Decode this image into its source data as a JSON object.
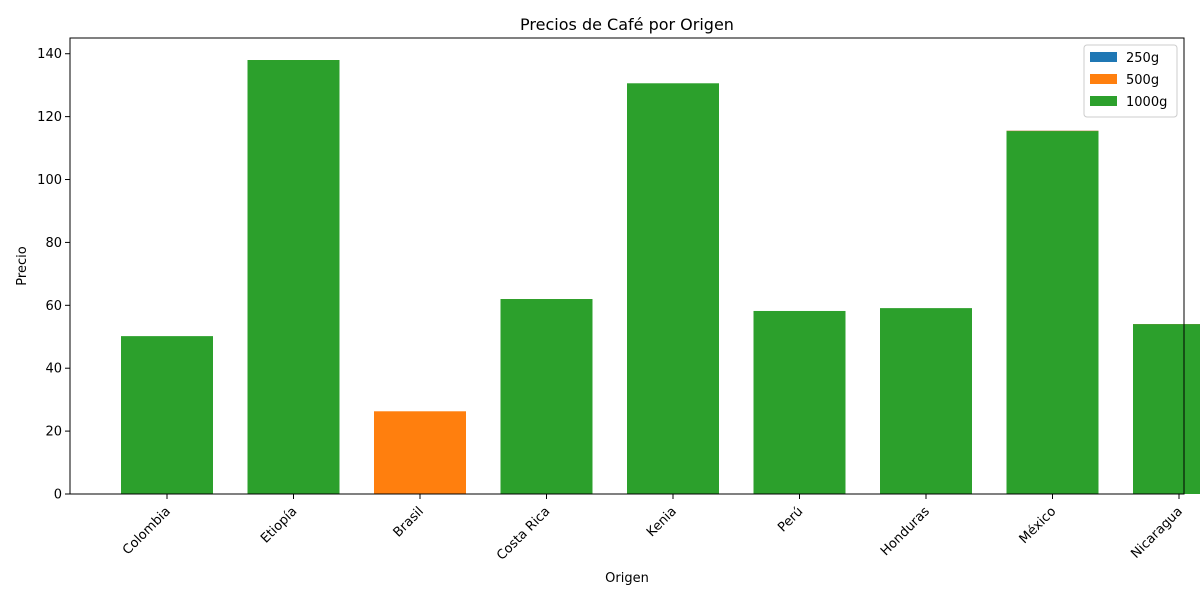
{
  "chart_data": {
    "type": "bar",
    "title": "Precios de Café por Origen",
    "xlabel": "Origen",
    "ylabel": "Precio",
    "categories": [
      "Colombia",
      "Etiopía",
      "Brasil",
      "Costa Rica",
      "Kenia",
      "Perú",
      "Honduras",
      "México",
      "Nicaragua"
    ],
    "series": [
      {
        "name": "250g",
        "color": "#1f77b4",
        "values": [
          50,
          138,
          26,
          62,
          130.5,
          58,
          59,
          115.5,
          54
        ]
      },
      {
        "name": "500g",
        "color": "#ff7f0e",
        "values": [
          50,
          138,
          26.3,
          62,
          130.5,
          58,
          59,
          115.5,
          54
        ]
      },
      {
        "name": "1000g",
        "color": "#2ca02c",
        "values": [
          50.2,
          138,
          null,
          62,
          130.6,
          58.2,
          59.1,
          115.4,
          54
        ]
      }
    ],
    "ylim": [
      0,
      145
    ],
    "yticks": [
      0,
      20,
      40,
      60,
      80,
      100,
      120,
      140
    ],
    "legend": "top-right",
    "grid": false
  }
}
